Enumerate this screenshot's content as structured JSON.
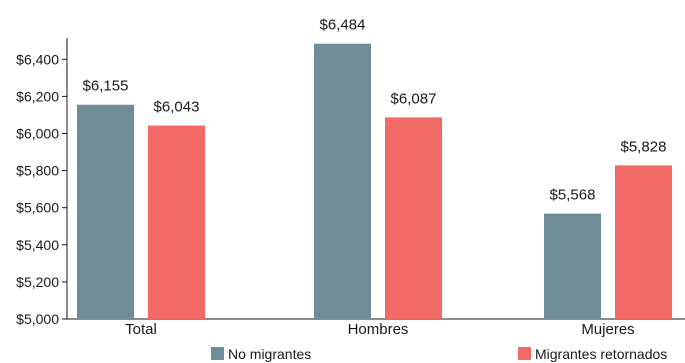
{
  "chart_data": {
    "type": "bar",
    "categories": [
      "Total",
      "Hombres",
      "Mujeres"
    ],
    "series": [
      {
        "name": "No migrantes",
        "values": [
          6155,
          6484,
          5568
        ],
        "color": "#6e8d97"
      },
      {
        "name": "Migrantes retornados",
        "values": [
          6043,
          6087,
          5828
        ],
        "color": "#f26a65"
      }
    ],
    "data_labels": [
      [
        "$6,155",
        "$6,484",
        "$5,568"
      ],
      [
        "$6,043",
        "$6,087",
        "$5,828"
      ]
    ],
    "yticks": [
      "$5,000",
      "$5,200",
      "$5,400",
      "$5,600",
      "$5,800",
      "$6,000",
      "$6,200",
      "$6,400"
    ],
    "ytick_values": [
      5000,
      5200,
      5400,
      5600,
      5800,
      6000,
      6200,
      6400
    ],
    "ylim": [
      5000,
      6500
    ],
    "grid": false,
    "legend_position": "bottom"
  }
}
